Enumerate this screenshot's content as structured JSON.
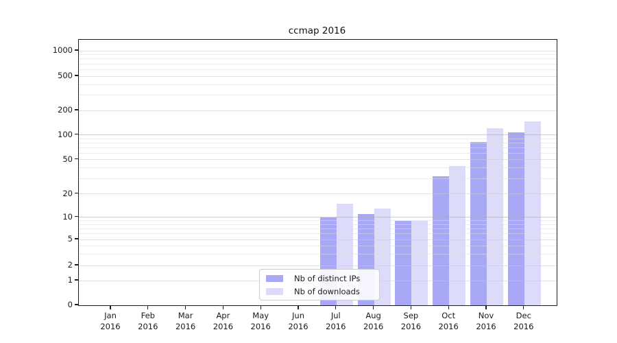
{
  "title": "ccmap 2016",
  "chart_data": {
    "type": "bar",
    "title": "ccmap 2016",
    "categories": [
      "Jan 2016",
      "Feb 2016",
      "Mar 2016",
      "Apr 2016",
      "May 2016",
      "Jun 2016",
      "Jul 2016",
      "Aug 2016",
      "Sep 2016",
      "Oct 2016",
      "Nov 2016",
      "Dec 2016"
    ],
    "series": [
      {
        "name": "Nb of distinct IPs",
        "color": "#a8a8f6",
        "values": [
          0,
          0,
          0,
          0,
          0,
          0,
          10,
          11,
          9,
          32,
          82,
          107
        ]
      },
      {
        "name": "Nb of downloads",
        "color": "#dcdcfa",
        "values": [
          0,
          0,
          0,
          0,
          0,
          0,
          15,
          13,
          9,
          42,
          120,
          145
        ]
      }
    ],
    "xlabel": "",
    "ylabel": "",
    "yscale": "symlog",
    "yticks": [
      0,
      1,
      2,
      5,
      10,
      20,
      50,
      100,
      200,
      500,
      1000
    ],
    "ylim": [
      0,
      1200
    ],
    "grid": "horizontal major and minor",
    "legend_position": "lower center (inside plot)"
  },
  "legend": {
    "items": [
      {
        "label": "Nb of distinct IPs"
      },
      {
        "label": "Nb of downloads"
      }
    ]
  }
}
